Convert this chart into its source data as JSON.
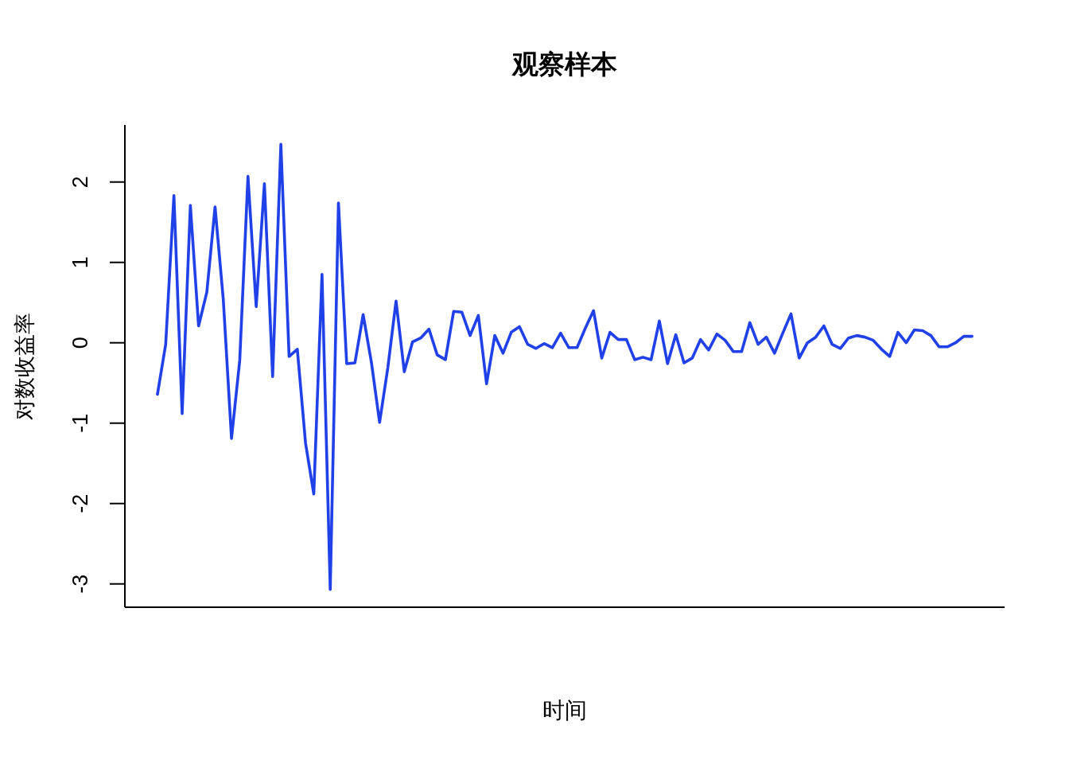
{
  "chart_data": {
    "type": "line",
    "title": "观察样本",
    "xlabel": "时间",
    "ylabel": "对数收益率",
    "categories": [
      null,
      null,
      null,
      null,
      null,
      null,
      null,
      null,
      null,
      null,
      null,
      null,
      null,
      null,
      null,
      null,
      null,
      null,
      null,
      null,
      null,
      null,
      null,
      null,
      null,
      null,
      null,
      null,
      null,
      null,
      null,
      null,
      null,
      null,
      null,
      null,
      null,
      null,
      null,
      null,
      null,
      null,
      null,
      null,
      null,
      null,
      null,
      null,
      null,
      null,
      null,
      null,
      null,
      null,
      null,
      null,
      null,
      null,
      null,
      null,
      null,
      null,
      null,
      null,
      null,
      null,
      null,
      null,
      null,
      null,
      null,
      null,
      null,
      null,
      null,
      null,
      null,
      null,
      null,
      null,
      null,
      null,
      null,
      null,
      null,
      null,
      null,
      null,
      null,
      null,
      null,
      null,
      null,
      null,
      null,
      null,
      null,
      null,
      null,
      null
    ],
    "series": [
      {
        "color": "#2040e8",
        "values": [
          -0.64,
          -0.02,
          1.83,
          -0.88,
          1.71,
          0.21,
          0.63,
          1.69,
          0.54,
          -1.19,
          -0.22,
          2.07,
          0.45,
          1.98,
          -0.42,
          2.47,
          -0.17,
          -0.08,
          -1.25,
          -1.88,
          0.85,
          -3.07,
          1.74,
          -0.26,
          -0.25,
          0.35,
          -0.24,
          -0.99,
          -0.31,
          0.52,
          -0.36,
          0.01,
          0.06,
          0.17,
          -0.15,
          -0.21,
          0.39,
          0.38,
          0.09,
          0.34,
          -0.51,
          0.09,
          -0.13,
          0.13,
          0.2,
          -0.02,
          -0.07,
          -0.01,
          -0.06,
          0.12,
          -0.06,
          -0.06,
          0.18,
          0.4,
          -0.19,
          0.13,
          0.04,
          0.04,
          -0.21,
          -0.18,
          -0.21,
          0.27,
          -0.26,
          0.1,
          -0.25,
          -0.19,
          0.04,
          -0.09,
          0.11,
          0.03,
          -0.11,
          -0.11,
          0.25,
          -0.02,
          0.07,
          -0.13,
          0.12,
          0.36,
          -0.19,
          0.0,
          0.07,
          0.21,
          -0.02,
          -0.07,
          0.06,
          0.09,
          0.07,
          0.03,
          -0.08,
          -0.17,
          0.13,
          0.0,
          0.16,
          0.15,
          0.09,
          -0.05,
          -0.05,
          0.0,
          0.08,
          0.08
        ]
      }
    ],
    "ylim": [
      -3.29,
      2.71
    ],
    "yticks": [
      -3,
      -2,
      -1,
      0,
      1,
      2
    ],
    "tick_labels": "y"
  }
}
